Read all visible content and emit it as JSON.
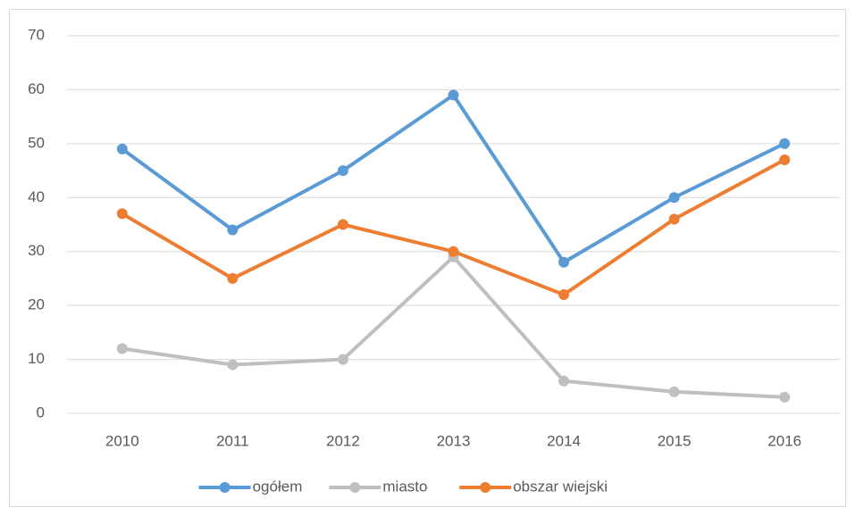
{
  "chart_data": {
    "type": "line",
    "categories": [
      "2010",
      "2011",
      "2012",
      "2013",
      "2014",
      "2015",
      "2016"
    ],
    "series": [
      {
        "name": "ogółem",
        "color": "#5b9bd5",
        "values": [
          49,
          34,
          45,
          59,
          28,
          40,
          50
        ]
      },
      {
        "name": "miasto",
        "color": "#bfbfbf",
        "values": [
          12,
          9,
          10,
          29,
          6,
          4,
          3
        ]
      },
      {
        "name": "obszar wiejski",
        "color": "#ed7d31",
        "values": [
          37,
          25,
          35,
          30,
          22,
          36,
          47
        ]
      }
    ],
    "ylim": [
      0,
      70
    ],
    "yticks": [
      0,
      10,
      20,
      30,
      40,
      50,
      60,
      70
    ],
    "grid": true,
    "legend": "bottom"
  }
}
